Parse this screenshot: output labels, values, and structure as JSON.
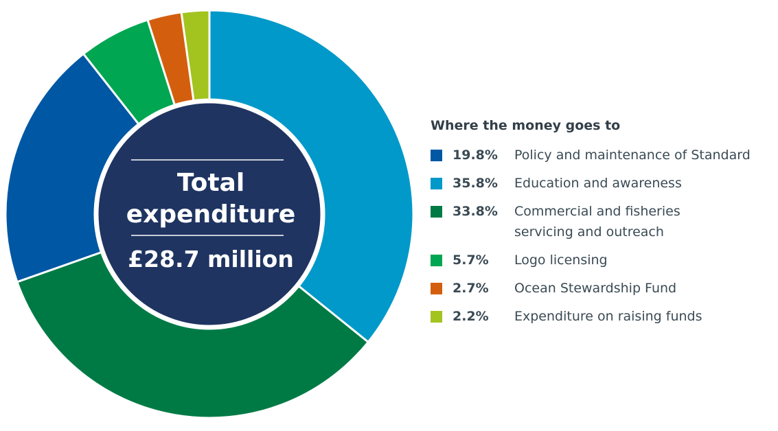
{
  "chart_data": {
    "type": "donut",
    "center": {
      "line1": "Total",
      "line2": "expenditure",
      "total": "£28.7 million"
    },
    "legend_title": "Where the money goes to",
    "slices": [
      {
        "label": "Education and awareness",
        "value": 35.8,
        "display": "35.8%",
        "color": "#0099c9"
      },
      {
        "label": "Commercial and fisheries servicing and outreach",
        "value": 33.8,
        "display": "33.8%",
        "color": "#007a45"
      },
      {
        "label": "Policy and maintenance of Standard",
        "value": 19.8,
        "display": "19.8%",
        "color": "#0057a4"
      },
      {
        "label": "Logo licensing",
        "value": 5.7,
        "display": "5.7%",
        "color": "#00a651"
      },
      {
        "label": "Ocean Stewardship Fund",
        "value": 2.7,
        "display": "2.7%",
        "color": "#d35f0e"
      },
      {
        "label": "Expenditure on raising funds",
        "value": 2.2,
        "display": "2.2%",
        "color": "#a3c31f"
      }
    ],
    "legend_order": [
      {
        "display": "19.8%",
        "label": "Policy and maintenance of Standard",
        "color": "#0057a4"
      },
      {
        "display": "35.8%",
        "label": "Education and awareness",
        "color": "#0099c9"
      },
      {
        "display": "33.8%",
        "label": "Commercial and fisheries servicing and outreach",
        "color": "#007a45"
      },
      {
        "display": "5.7%",
        "label": "Logo licensing",
        "color": "#00a651"
      },
      {
        "display": "2.7%",
        "label": "Ocean Stewardship Fund",
        "color": "#d35f0e"
      },
      {
        "display": "2.2%",
        "label": "Expenditure on raising funds",
        "color": "#a3c31f"
      }
    ],
    "center_color": "#1f3461"
  }
}
